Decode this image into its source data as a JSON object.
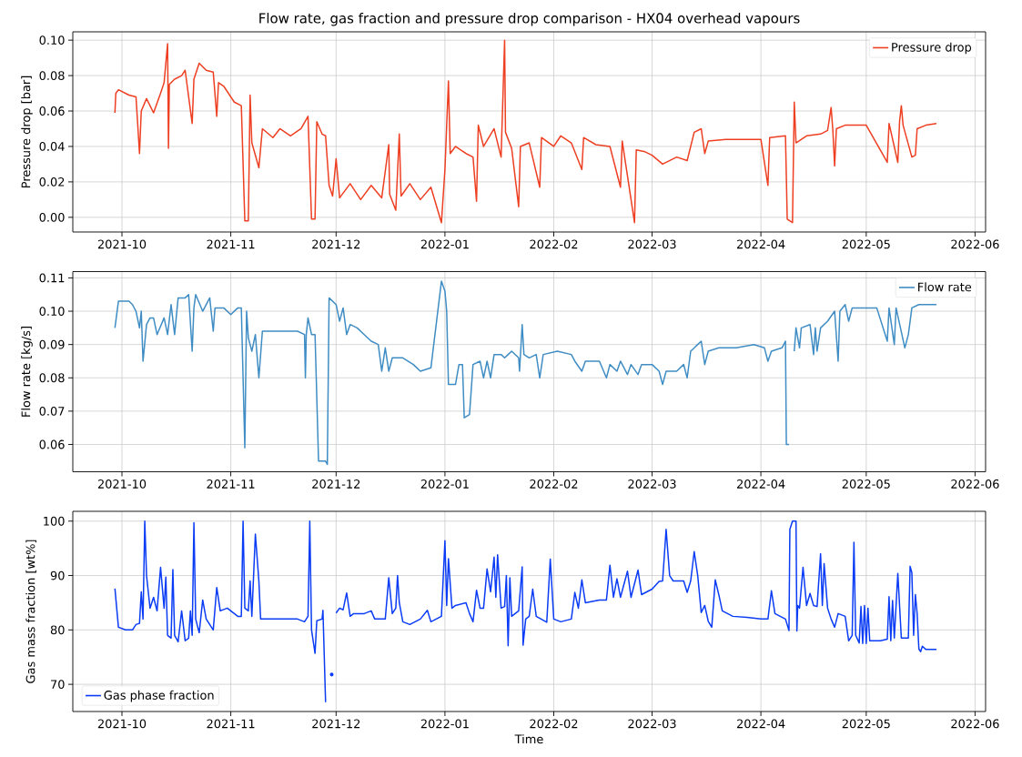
{
  "chart_data": [
    {
      "type": "line",
      "title": "Flow rate, gas fraction and pressure drop comparison - HX04 overhead vapours",
      "ylabel": "Pressure drop [bar]",
      "xlim": [
        "2021-09-17",
        "2022-06-04"
      ],
      "xticks": [
        "2021-10",
        "2021-11",
        "2021-12",
        "2022-01",
        "2022-02",
        "2022-03",
        "2022-04",
        "2022-05",
        "2022-06"
      ],
      "ylim": [
        -0.0083,
        0.1047
      ],
      "yticks": [
        {
          "value": 0,
          "label": "0.00"
        },
        {
          "value": 0.02,
          "label": "0.02"
        },
        {
          "value": 0.04,
          "label": "0.04"
        },
        {
          "value": 0.06,
          "label": "0.06"
        },
        {
          "value": 0.08,
          "label": "0.08"
        },
        {
          "value": 0.1,
          "label": "0.10"
        }
      ],
      "grid": true,
      "legend": "top right",
      "series": [
        {
          "name": "Pressure drop",
          "color": "#ee3f22",
          "x": [
            "2021-09-29T00:00",
            "2021-09-29T06:00",
            "2021-09-30",
            "2021-10-03",
            "2021-10-05",
            "2021-10-06T00:00",
            "2021-10-06T12:00",
            "2021-10-08",
            "2021-10-10",
            "2021-10-12",
            "2021-10-13",
            "2021-10-14T00:00",
            "2021-10-14T06:00",
            "2021-10-14T12:00",
            "2021-10-16",
            "2021-10-18",
            "2021-10-19",
            "2021-10-21T00:00",
            "2021-10-21T12:00",
            "2021-10-23",
            "2021-10-25",
            "2021-10-27",
            "2021-10-28T00:00",
            "2021-10-28T12:00",
            "2021-10-30",
            "2021-11-02",
            "2021-11-04",
            "2021-11-05",
            "2021-11-06T00:00",
            "2021-11-06T12:00",
            "2021-11-07",
            "2021-11-09",
            "2021-11-10",
            "2021-11-13",
            "2021-11-15",
            "2021-11-18",
            "2021-11-21",
            "2021-11-23",
            "2021-11-24",
            "2021-11-25T00:00",
            "2021-11-25T12:00",
            "2021-11-27",
            "2021-11-28",
            "2021-11-29",
            "2021-11-30",
            "2021-12-01",
            "2021-12-02",
            "2021-12-05",
            "2021-12-08",
            "2021-12-11",
            "2021-12-14",
            "2021-12-16T00:00",
            "2021-12-16T06:00",
            "2021-12-18",
            "2021-12-19T00:00",
            "2021-12-19T12:00",
            "2021-12-22",
            "2021-12-25",
            "2021-12-28",
            "2021-12-31",
            "2022-01-01",
            "2022-01-02T00:00",
            "2022-01-02T12:00",
            "2022-01-04",
            "2022-01-07",
            "2022-01-09",
            "2022-01-10T00:00",
            "2022-01-10T12:00",
            "2022-01-12",
            "2022-01-15",
            "2022-01-17",
            "2022-01-18T00:00",
            "2022-01-18T06:00",
            "2022-01-20",
            "2022-01-22T00:00",
            "2022-01-22T12:00",
            "2022-01-25",
            "2022-01-28T00:00",
            "2022-01-28T12:00",
            "2022-02-01",
            "2022-02-03",
            "2022-02-06",
            "2022-02-09T00:00",
            "2022-02-09T12:00",
            "2022-02-13",
            "2022-02-17",
            "2022-02-20T00:00",
            "2022-02-20T12:00",
            "2022-02-24T00:00",
            "2022-02-24T12:00",
            "2022-02-27",
            "2022-03-01",
            "2022-03-04",
            "2022-03-08",
            "2022-03-11",
            "2022-03-13",
            "2022-03-15",
            "2022-03-16",
            "2022-03-17",
            "2022-03-22",
            "2022-03-28",
            "2022-04-01",
            "2022-04-03T00:00",
            "2022-04-03T12:00",
            "2022-04-08T00:00",
            "2022-04-08T12:00",
            "2022-04-10T00:00",
            "2022-04-10T12:00",
            "2022-04-11",
            "2022-04-14",
            "2022-04-18",
            "2022-04-20",
            "2022-04-21T00:00",
            "2022-04-21T12:00",
            "2022-04-22T00:00",
            "2022-04-22T12:00",
            "2022-04-25",
            "2022-05-01",
            "2022-05-07T00:00",
            "2022-05-07T12:00",
            "2022-05-10T00:00",
            "2022-05-10T12:00",
            "2022-05-11T00:00",
            "2022-05-11T12:00",
            "2022-05-14",
            "2022-05-15T00:00",
            "2022-05-15T12:00",
            "2022-05-18",
            "2022-05-21"
          ],
          "values": [
            0.059,
            0.07,
            0.072,
            0.069,
            0.068,
            0.036,
            0.06,
            0.067,
            0.059,
            0.07,
            0.076,
            0.098,
            0.039,
            0.075,
            0.078,
            0.08,
            0.083,
            0.053,
            0.078,
            0.087,
            0.083,
            0.082,
            0.057,
            0.076,
            0.074,
            0.065,
            0.063,
            -0.002,
            -0.002,
            0.069,
            0.042,
            0.028,
            0.05,
            0.045,
            0.05,
            0.046,
            0.05,
            0.057,
            -0.001,
            -0.001,
            0.054,
            0.047,
            0.046,
            0.018,
            0.012,
            0.033,
            0.011,
            0.019,
            0.01,
            0.018,
            0.011,
            0.041,
            0.013,
            0.004,
            0.047,
            0.012,
            0.019,
            0.01,
            0.017,
            -0.003,
            0.027,
            0.077,
            0.036,
            0.04,
            0.036,
            0.034,
            0.009,
            0.052,
            0.04,
            0.05,
            0.034,
            0.1,
            0.048,
            0.039,
            0.006,
            0.04,
            0.042,
            0.017,
            0.045,
            0.04,
            0.046,
            0.042,
            0.027,
            0.045,
            0.041,
            0.04,
            0.017,
            0.043,
            -0.003,
            0.038,
            0.037,
            0.035,
            0.03,
            0.034,
            0.032,
            0.048,
            0.05,
            0.036,
            0.043,
            0.044,
            0.044,
            0.044,
            0.018,
            0.045,
            0.046,
            -0.001,
            -0.003,
            0.065,
            0.042,
            0.046,
            0.047,
            0.049,
            0.062,
            0.049,
            0.029,
            0.05,
            0.052,
            0.052,
            0.031,
            0.053,
            0.031,
            0.054,
            0.063,
            0.052,
            0.034,
            0.035,
            0.05,
            0.052,
            0.053
          ]
        }
      ]
    },
    {
      "type": "line",
      "ylabel": "Flow rate [kg/s]",
      "xlim": [
        "2021-09-17",
        "2022-06-04"
      ],
      "xticks": [
        "2021-10",
        "2021-11",
        "2021-12",
        "2022-01",
        "2022-02",
        "2022-03",
        "2022-04",
        "2022-05",
        "2022-06"
      ],
      "ylim": [
        0.0518,
        0.1119
      ],
      "yticks": [
        {
          "value": 0.06,
          "label": "0.06"
        },
        {
          "value": 0.07,
          "label": "0.07"
        },
        {
          "value": 0.08,
          "label": "0.08"
        },
        {
          "value": 0.09,
          "label": "0.09"
        },
        {
          "value": 0.1,
          "label": "0.10"
        },
        {
          "value": 0.11,
          "label": "0.11"
        }
      ],
      "grid": true,
      "legend": "top right",
      "series": [
        {
          "name": "Flow rate",
          "color": "#3f8dc4",
          "x": [
            "2021-09-29",
            "2021-09-30",
            "2021-10-03",
            "2021-10-04",
            "2021-10-05",
            "2021-10-06T00:00",
            "2021-10-06T12:00",
            "2021-10-07",
            "2021-10-08",
            "2021-10-09",
            "2021-10-10",
            "2021-10-11",
            "2021-10-13",
            "2021-10-14",
            "2021-10-15",
            "2021-10-16",
            "2021-10-17",
            "2021-10-19",
            "2021-10-20",
            "2021-10-21T00:00",
            "2021-10-21T12:00",
            "2021-10-22",
            "2021-10-24",
            "2021-10-26",
            "2021-10-27T00:00",
            "2021-10-27T12:00",
            "2021-10-30",
            "2021-11-01",
            "2021-11-03",
            "2021-11-04",
            "2021-11-05T00:00",
            "2021-11-05T12:00",
            "2021-11-06",
            "2021-11-07",
            "2021-11-08",
            "2021-11-09",
            "2021-11-10",
            "2021-11-15",
            "2021-11-20",
            "2021-11-22T00:00",
            "2021-11-22T06:00",
            "2021-11-22T12:00",
            "2021-11-23",
            "2021-11-24",
            "2021-11-25",
            "2021-11-26",
            "2021-11-28T00:00",
            "2021-11-28T12:00",
            "2021-11-29",
            "2021-12-01",
            "2021-12-02",
            "2021-12-03",
            "2021-12-04",
            "2021-12-05",
            "2021-12-07",
            "2021-12-09",
            "2021-12-11",
            "2021-12-13",
            "2021-12-14",
            "2021-12-15",
            "2021-12-16",
            "2021-12-17",
            "2021-12-20",
            "2021-12-23",
            "2021-12-25",
            "2021-12-28",
            "2021-12-31",
            "2022-01-01T00:00",
            "2022-01-01T12:00",
            "2022-01-02",
            "2022-01-04",
            "2022-01-05",
            "2022-01-06T00:00",
            "2022-01-06T12:00",
            "2022-01-08",
            "2022-01-09",
            "2022-01-11",
            "2022-01-12",
            "2022-01-13",
            "2022-01-14",
            "2022-01-15",
            "2022-01-17",
            "2022-01-18",
            "2022-01-19",
            "2022-01-20",
            "2022-01-22T00:00",
            "2022-01-22T06:00",
            "2022-01-23T00:00",
            "2022-01-23T12:00",
            "2022-01-25",
            "2022-01-27",
            "2022-01-28",
            "2022-01-29",
            "2022-02-02",
            "2022-02-06",
            "2022-02-07",
            "2022-02-09",
            "2022-02-10",
            "2022-02-14",
            "2022-02-16",
            "2022-02-17",
            "2022-02-19",
            "2022-02-20",
            "2022-02-22",
            "2022-02-23",
            "2022-02-25",
            "2022-02-26",
            "2022-03-01",
            "2022-03-03",
            "2022-03-04",
            "2022-03-05",
            "2022-03-08",
            "2022-03-10",
            "2022-03-11",
            "2022-03-12",
            "2022-03-14",
            "2022-03-15",
            "2022-03-16",
            "2022-03-17",
            "2022-03-20",
            "2022-03-25",
            "2022-03-30",
            "2022-04-02",
            "2022-04-03",
            "2022-04-04",
            "2022-04-07",
            "2022-04-08T00:00",
            "2022-04-08T06:00",
            "2022-04-09",
            "2022-04-10T00:00",
            "2022-04-10T12:00",
            "2022-04-11",
            "2022-04-12T00:00",
            "2022-04-12T12:00",
            "2022-04-15",
            "2022-04-16T00:00",
            "2022-04-16T12:00",
            "2022-04-17",
            "2022-04-18",
            "2022-04-20",
            "2022-04-22",
            "2022-04-23T00:00",
            "2022-04-23T12:00",
            "2022-04-25",
            "2022-04-26",
            "2022-04-27",
            "2022-05-01",
            "2022-05-04",
            "2022-05-07T00:00",
            "2022-05-07T12:00",
            "2022-05-09T00:00",
            "2022-05-09T12:00",
            "2022-05-12",
            "2022-05-13",
            "2022-05-14",
            "2022-05-16",
            "2022-05-21"
          ],
          "values": [
            0.095,
            0.103,
            0.103,
            0.102,
            0.1,
            0.095,
            0.1,
            0.085,
            0.096,
            0.098,
            0.098,
            0.093,
            0.098,
            0.093,
            0.102,
            0.093,
            0.104,
            0.104,
            0.105,
            0.088,
            0.101,
            0.105,
            0.1,
            0.104,
            0.094,
            0.101,
            0.101,
            0.099,
            0.101,
            0.101,
            0.059,
            0.1,
            0.092,
            0.088,
            0.093,
            0.08,
            0.094,
            0.094,
            0.094,
            0.093,
            0.08,
            0.093,
            0.098,
            0.093,
            0.093,
            0.055,
            0.055,
            0.054,
            0.104,
            0.102,
            0.097,
            0.101,
            0.093,
            0.096,
            0.095,
            0.093,
            0.091,
            0.09,
            0.082,
            0.089,
            0.082,
            0.086,
            0.086,
            0.084,
            0.082,
            0.083,
            0.109,
            0.106,
            0.1,
            0.078,
            0.078,
            0.084,
            0.084,
            0.068,
            0.069,
            0.084,
            0.085,
            0.08,
            0.085,
            0.08,
            0.087,
            0.087,
            0.086,
            0.087,
            0.088,
            0.086,
            0.082,
            0.096,
            0.087,
            0.086,
            0.087,
            0.08,
            0.087,
            0.088,
            0.087,
            0.085,
            0.082,
            0.085,
            0.085,
            0.08,
            0.084,
            0.082,
            0.085,
            0.081,
            0.084,
            0.081,
            0.084,
            0.084,
            0.082,
            0.078,
            0.082,
            0.082,
            0.084,
            0.08,
            0.088,
            0.09,
            0.091,
            0.084,
            0.088,
            0.089,
            0.089,
            0.09,
            0.089,
            0.085,
            0.088,
            0.089,
            0.091,
            0.06,
            0.06,
            null,
            0.088,
            0.095,
            0.089,
            0.095,
            0.096,
            0.087,
            0.095,
            0.088,
            0.095,
            0.097,
            0.1,
            0.085,
            0.1,
            0.102,
            0.097,
            0.101,
            0.101,
            0.101,
            0.091,
            0.101,
            0.09,
            0.101,
            0.089,
            0.093,
            0.101,
            0.102,
            0.102
          ]
        }
      ]
    },
    {
      "type": "line",
      "xlabel": "Time",
      "ylabel": "Gas mass fraction [wt%]",
      "xlim": [
        "2021-09-17",
        "2022-06-04"
      ],
      "xticks": [
        "2021-10",
        "2021-11",
        "2021-12",
        "2022-01",
        "2022-02",
        "2022-03",
        "2022-04",
        "2022-05",
        "2022-06"
      ],
      "ylim": [
        65.0,
        101.8
      ],
      "yticks": [
        70,
        80,
        90,
        100
      ],
      "grid": true,
      "legend": "bottom left",
      "series": [
        {
          "name": "Gas phase fraction",
          "color": "#0a3cf5",
          "x": [
            "2021-09-29",
            "2021-09-30",
            "2021-10-02",
            "2021-10-04",
            "2021-10-05",
            "2021-10-06T00:00",
            "2021-10-06T12:00",
            "2021-10-07T00:00",
            "2021-10-07T12:00",
            "2021-10-08",
            "2021-10-09",
            "2021-10-10",
            "2021-10-11",
            "2021-10-12",
            "2021-10-13T00:00",
            "2021-10-13T12:00",
            "2021-10-14",
            "2021-10-15T00:00",
            "2021-10-15T12:00",
            "2021-10-16",
            "2021-10-17",
            "2021-10-18",
            "2021-10-19",
            "2021-10-20T00:00",
            "2021-10-20T12:00",
            "2021-10-21T00:00",
            "2021-10-21T12:00",
            "2021-10-22",
            "2021-10-23",
            "2021-10-24",
            "2021-10-25",
            "2021-10-27",
            "2021-10-28",
            "2021-10-29",
            "2021-10-31",
            "2021-11-02",
            "2021-11-03",
            "2021-11-04T00:00",
            "2021-11-04T12:00",
            "2021-11-05",
            "2021-11-06T00:00",
            "2021-11-06T12:00",
            "2021-11-07",
            "2021-11-08",
            "2021-11-09T00:00",
            "2021-11-09T12:00",
            "2021-11-15",
            "2021-11-20",
            "2021-11-22",
            "2021-11-23T00:00",
            "2021-11-23T12:00",
            "2021-11-24",
            "2021-11-25T00:00",
            "2021-11-25T12:00",
            "2021-11-27T00:00",
            "2021-11-27T06:00",
            "2021-11-27T12:00",
            "2021-11-28",
            "2021-11-29",
            "2021-12-01",
            "2021-12-02",
            "2021-12-03",
            "2021-12-04",
            "2021-12-05",
            "2021-12-06",
            "2021-12-09",
            "2021-12-11",
            "2021-12-12",
            "2021-12-15",
            "2021-12-16",
            "2021-12-17",
            "2021-12-18T00:00",
            "2021-12-18T12:00",
            "2021-12-19",
            "2021-12-20",
            "2021-12-22",
            "2021-12-25",
            "2021-12-27",
            "2021-12-28",
            "2021-12-31",
            "2022-01-01T00:00",
            "2022-01-01T12:00",
            "2022-01-02",
            "2022-01-03",
            "2022-01-04",
            "2022-01-07",
            "2022-01-08",
            "2022-01-09",
            "2022-01-10",
            "2022-01-11",
            "2022-01-12",
            "2022-01-13",
            "2022-01-14",
            "2022-01-15T00:00",
            "2022-01-15T12:00",
            "2022-01-16",
            "2022-01-17",
            "2022-01-18T00:00",
            "2022-01-18T12:00",
            "2022-01-19T00:00",
            "2022-01-19T12:00",
            "2022-01-20",
            "2022-01-22",
            "2022-01-23T00:00",
            "2022-01-23T06:00",
            "2022-01-24",
            "2022-01-25",
            "2022-01-26",
            "2022-01-27",
            "2022-01-30",
            "2022-01-31",
            "2022-02-01",
            "2022-02-03",
            "2022-02-06",
            "2022-02-07",
            "2022-02-08",
            "2022-02-09",
            "2022-02-10",
            "2022-02-14",
            "2022-02-16",
            "2022-02-17",
            "2022-02-18",
            "2022-02-19",
            "2022-02-20",
            "2022-02-22",
            "2022-02-23",
            "2022-02-25",
            "2022-02-26",
            "2022-03-01",
            "2022-03-03",
            "2022-03-04",
            "2022-03-05",
            "2022-03-06",
            "2022-03-07",
            "2022-03-10",
            "2022-03-11",
            "2022-03-12",
            "2022-03-13",
            "2022-03-14",
            "2022-03-15",
            "2022-03-16",
            "2022-03-17",
            "2022-03-18",
            "2022-03-19",
            "2022-03-20",
            "2022-03-21",
            "2022-03-24",
            "2022-03-28",
            "2022-04-01",
            "2022-04-03",
            "2022-04-04",
            "2022-04-05",
            "2022-04-08",
            "2022-04-09T00:00",
            "2022-04-09T06:00",
            "2022-04-10",
            "2022-04-11T00:00",
            "2022-04-11T06:00",
            "2022-04-11T12:00",
            "2022-04-12",
            "2022-04-13",
            "2022-04-14",
            "2022-04-15",
            "2022-04-16",
            "2022-04-17",
            "2022-04-18T00:00",
            "2022-04-18T12:00",
            "2022-04-19",
            "2022-04-20",
            "2022-04-21",
            "2022-04-22",
            "2022-04-23",
            "2022-04-25",
            "2022-04-26",
            "2022-04-27T00:00",
            "2022-04-27T12:00",
            "2022-04-28",
            "2022-04-29T00:00",
            "2022-04-29T12:00",
            "2022-04-30T00:00",
            "2022-04-30T12:00",
            "2022-05-01T00:00",
            "2022-05-01T12:00",
            "2022-05-02",
            "2022-05-05",
            "2022-05-07T00:00",
            "2022-05-07T12:00",
            "2022-05-08T00:00",
            "2022-05-08T12:00",
            "2022-05-09",
            "2022-05-10",
            "2022-05-11",
            "2022-05-13T00:00",
            "2022-05-13T12:00",
            "2022-05-14T00:00",
            "2022-05-14T12:00",
            "2022-05-15T00:00",
            "2022-05-15T12:00",
            "2022-05-16T00:00",
            "2022-05-16T12:00",
            "2022-05-17",
            "2022-05-18",
            "2022-05-21"
          ],
          "values": [
            87.6,
            80.5,
            80.0,
            80.0,
            81.0,
            81.2,
            87.0,
            82.0,
            100.0,
            90.0,
            84.0,
            86.0,
            83.5,
            91.5,
            84.0,
            89.7,
            79.0,
            78.5,
            91.1,
            79.0,
            77.8,
            83.5,
            78.0,
            78.5,
            83.5,
            79.0,
            99.7,
            82.0,
            79.5,
            85.5,
            82.0,
            80.0,
            87.8,
            83.5,
            84.0,
            83.0,
            82.5,
            82.5,
            100.0,
            84.0,
            83.5,
            89.0,
            82.5,
            97.6,
            89.0,
            82.0,
            82.0,
            82.0,
            81.5,
            82.5,
            100.0,
            80.0,
            75.7,
            81.7,
            82.0,
            83.6,
            78.0,
            66.7,
            null,
            83.1,
            84.0,
            83.7,
            86.8,
            82.5,
            83.0,
            83.0,
            83.5,
            82.0,
            82.0,
            89.6,
            83.0,
            84.0,
            90.0,
            85.0,
            81.5,
            81.0,
            82.0,
            83.6,
            81.5,
            82.5,
            96.4,
            84.5,
            93.1,
            84.0,
            84.5,
            85.0,
            83.0,
            81.5,
            87.3,
            84.0,
            84.0,
            91.2,
            87.0,
            93.4,
            86.0,
            93.8,
            84.0,
            84.3,
            90.0,
            77.1,
            89.6,
            82.5,
            83.5,
            91.6,
            77.2,
            82.0,
            82.5,
            87.5,
            82.5,
            81.4,
            93.0,
            82.0,
            81.5,
            82.0,
            86.9,
            84.0,
            89.2,
            85.0,
            85.5,
            85.5,
            91.9,
            86.0,
            89.4,
            86.0,
            90.8,
            86.0,
            91.0,
            86.5,
            87.5,
            88.9,
            89.0,
            98.5,
            90.0,
            89.0,
            89.0,
            86.9,
            89.0,
            94.4,
            90.0,
            83.2,
            84.5,
            81.6,
            80.5,
            89.2,
            86.5,
            83.5,
            82.5,
            82.3,
            82.0,
            82.0,
            87.2,
            83.0,
            82.0,
            79.9,
            98.5,
            100.0,
            100.0,
            79.8,
            84.5,
            84.0,
            91.5,
            84.5,
            86.7,
            84.5,
            84.3,
            94.0,
            84.5,
            92.2,
            84.0,
            82.0,
            80.5,
            83.0,
            82.5,
            78.0,
            79.0,
            96.1,
            79.0,
            77.6,
            84.3,
            77.5,
            84.5,
            77.5,
            84.0,
            78.0,
            78.0,
            78.3,
            86.1,
            78.0,
            85.4,
            78.5,
            90.4,
            78.5,
            78.5,
            91.7,
            90.5,
            79.0,
            86.5,
            83.0,
            76.5,
            76.0,
            77.0,
            76.4,
            76.4
          ]
        },
        {
          "type": "scatter",
          "marker": "circle",
          "color": "#0a3cf5",
          "x": [
            "2021-11-29T18:00"
          ],
          "values": [
            71.8
          ]
        }
      ]
    }
  ]
}
